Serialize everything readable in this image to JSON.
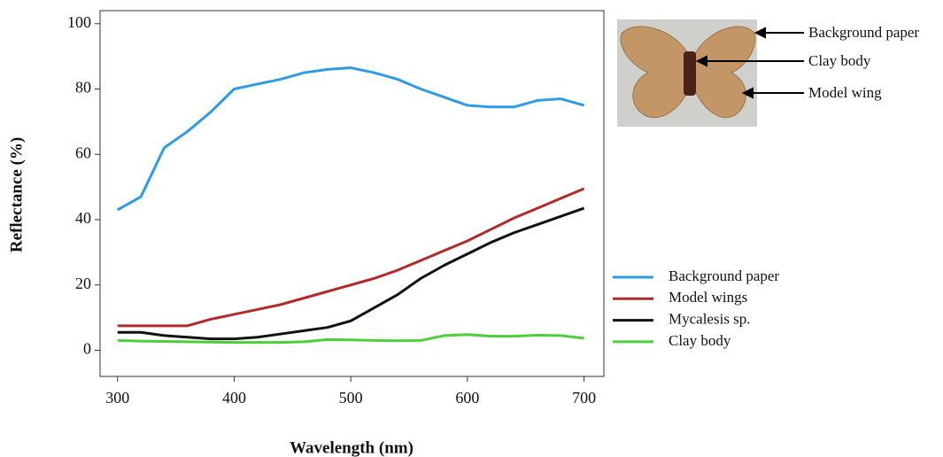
{
  "chart_data": {
    "type": "line",
    "x_label": "Wavelength (nm)",
    "y_label": "Reflectance (%)",
    "x": [
      300,
      320,
      340,
      360,
      380,
      400,
      420,
      440,
      460,
      480,
      500,
      520,
      540,
      560,
      580,
      600,
      620,
      640,
      660,
      680,
      700
    ],
    "series": [
      {
        "name": "Background paper",
        "color": "#2f9be3",
        "values": [
          43,
          47,
          62,
          67,
          73,
          80,
          81.5,
          83,
          85,
          86,
          86.5,
          85,
          83,
          80,
          77.5,
          75,
          74.5,
          74.5,
          76.5,
          77,
          75
        ]
      },
      {
        "name": "Model wings",
        "color": "#b22a2a",
        "values": [
          7.5,
          7.5,
          7.5,
          7.5,
          9.5,
          11,
          12.5,
          14,
          16,
          18,
          20,
          22,
          24.5,
          27.5,
          30.5,
          33.5,
          37,
          40.5,
          43.5,
          46.5,
          49.5
        ]
      },
      {
        "name": "Mycalesis sp.",
        "color": "#111111",
        "values": [
          5.5,
          5.5,
          4.5,
          4,
          3.5,
          3.5,
          4,
          5,
          6,
          7,
          9,
          13,
          17,
          22,
          26,
          29.5,
          33,
          36,
          38.5,
          41,
          43.5
        ]
      },
      {
        "name": "Clay body",
        "color": "#4ccf3a",
        "values": [
          3,
          2.8,
          2.7,
          2.6,
          2.5,
          2.4,
          2.4,
          2.4,
          2.6,
          3.3,
          3.2,
          3,
          2.9,
          3,
          4.5,
          4.8,
          4.3,
          4.3,
          4.6,
          4.5,
          3.7
        ]
      }
    ],
    "xlim": [
      285,
      717
    ],
    "ylim": [
      -8,
      104
    ],
    "xticks": [
      300,
      400,
      500,
      600,
      700
    ],
    "yticks": [
      0,
      20,
      40,
      60,
      80,
      100
    ],
    "grid": false,
    "annotations": [
      "Background paper",
      "Clay body",
      "Model wing"
    ]
  }
}
